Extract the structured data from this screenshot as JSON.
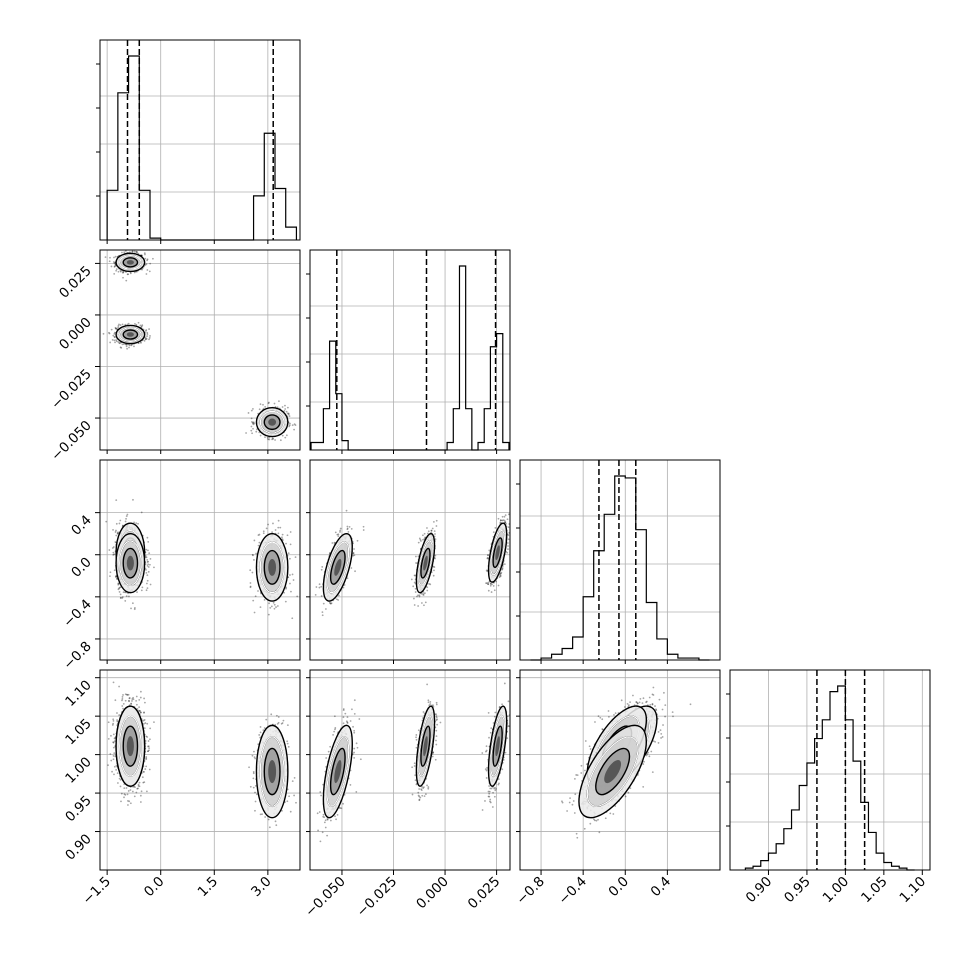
{
  "chart_data": {
    "type": "corner",
    "n_params": 4,
    "grid": true,
    "params": [
      {
        "index": 0,
        "range": [
          -1.7,
          3.9
        ],
        "ticks": [
          -1.5,
          0.0,
          1.5,
          3.0
        ],
        "tick_labels": [
          "−1.5",
          "0.0",
          "1.5",
          "3.0"
        ]
      },
      {
        "index": 1,
        "range": [
          -0.0655,
          0.0315
        ],
        "ticks": [
          -0.05,
          -0.025,
          0.0,
          0.025
        ],
        "tick_labels": [
          "−0.050",
          "−0.025",
          "0.000",
          "0.025"
        ]
      },
      {
        "index": 2,
        "range": [
          -1.0,
          0.9
        ],
        "ticks": [
          -0.8,
          -0.4,
          0.0,
          0.4
        ],
        "tick_labels": [
          "−0.8",
          "−0.4",
          "0.0",
          "0.4"
        ]
      },
      {
        "index": 3,
        "range": [
          0.85,
          1.11
        ],
        "ticks": [
          0.9,
          0.95,
          1.0,
          1.05,
          1.1
        ],
        "tick_labels": [
          "0.90",
          "0.95",
          "1.00",
          "1.05",
          "1.10"
        ]
      }
    ],
    "histograms": [
      {
        "param": 0,
        "bin_edges": [
          -1.5,
          -1.2,
          -0.9,
          -0.6,
          -0.3,
          0.0,
          0.3,
          2.6,
          2.9,
          3.2,
          3.5,
          3.8
        ],
        "counts": [
          0.27,
          0.8,
          1.0,
          0.27,
          0.01,
          0,
          0,
          0.24,
          0.58,
          0.28,
          0.07
        ],
        "quantiles": [
          -0.93,
          -0.6,
          3.15
        ]
      },
      {
        "param": 1,
        "bin_edges": [
          -0.065,
          -0.062,
          -0.059,
          -0.056,
          -0.053,
          -0.05,
          -0.047,
          -0.044,
          -0.041,
          -0.038,
          -0.035,
          -0.032,
          -0.029,
          -0.026,
          -0.023,
          -0.02,
          -0.017,
          -0.014,
          -0.011,
          -0.008,
          -0.005,
          -0.002,
          0.001,
          0.004,
          0.007,
          0.01,
          0.013,
          0.016,
          0.019,
          0.022,
          0.025,
          0.028,
          0.031
        ],
        "counts": [
          0.04,
          0.04,
          0.22,
          0.58,
          0.3,
          0.05,
          0.0,
          0.0,
          0.0,
          0.0,
          0.0,
          0.0,
          0.0,
          0.0,
          0.0,
          0.0,
          0.0,
          0.0,
          0.0,
          0.0,
          0.0,
          0.0,
          0.04,
          0.22,
          0.98,
          0.22,
          0.0,
          0.04,
          0.22,
          0.55,
          0.62,
          0.04
        ],
        "quantiles": [
          -0.0525,
          -0.009,
          0.0245
        ]
      },
      {
        "param": 2,
        "bin_edges": [
          -0.9,
          -0.8,
          -0.7,
          -0.6,
          -0.5,
          -0.4,
          -0.3,
          -0.2,
          -0.1,
          0.0,
          0.1,
          0.2,
          0.3,
          0.4,
          0.5,
          0.6,
          0.7,
          0.8
        ],
        "counts": [
          0.0,
          0.01,
          0.03,
          0.06,
          0.12,
          0.33,
          0.57,
          0.76,
          0.96,
          0.95,
          0.68,
          0.3,
          0.11,
          0.03,
          0.01,
          0.01,
          0.0
        ],
        "quantiles": [
          -0.25,
          -0.06,
          0.1
        ]
      },
      {
        "param": 3,
        "bin_edges": [
          0.87,
          0.88,
          0.89,
          0.9,
          0.91,
          0.92,
          0.93,
          0.94,
          0.95,
          0.96,
          0.97,
          0.98,
          0.99,
          1.0,
          1.01,
          1.02,
          1.03,
          1.04,
          1.05,
          1.06,
          1.07,
          1.08,
          1.09
        ],
        "counts": [
          0.01,
          0.02,
          0.05,
          0.09,
          0.14,
          0.22,
          0.32,
          0.45,
          0.57,
          0.7,
          0.8,
          0.95,
          0.98,
          0.8,
          0.58,
          0.36,
          0.2,
          0.09,
          0.04,
          0.02,
          0.01,
          0.0
        ],
        "quantiles": [
          0.963,
          1.0,
          1.025
        ]
      }
    ],
    "clusters": [
      {
        "means": [
          -0.85,
          0.0255,
          0.02,
          1.011
        ],
        "sds": [
          0.2,
          0.0022,
          0.14,
          0.026
        ],
        "weight": 0.36
      },
      {
        "means": [
          -0.85,
          -0.0095,
          -0.08,
          1.011
        ],
        "sds": [
          0.2,
          0.0022,
          0.14,
          0.026
        ],
        "weight": 0.36
      },
      {
        "means": [
          3.12,
          -0.052,
          -0.12,
          0.978
        ],
        "sds": [
          0.22,
          0.0035,
          0.16,
          0.03
        ],
        "weight": 0.28
      }
    ],
    "correlations": [
      {
        "pair": [
          3,
          2
        ],
        "rho": 0.65
      },
      {
        "pair": [
          1,
          2
        ],
        "rho": 0.6
      },
      {
        "pair": [
          1,
          3
        ],
        "rho": 0.6
      }
    ]
  }
}
